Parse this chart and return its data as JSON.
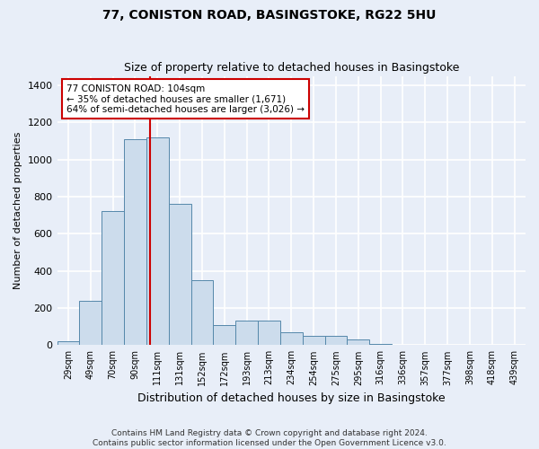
{
  "title1": "77, CONISTON ROAD, BASINGSTOKE, RG22 5HU",
  "title2": "Size of property relative to detached houses in Basingstoke",
  "xlabel": "Distribution of detached houses by size in Basingstoke",
  "ylabel": "Number of detached properties",
  "footnote": "Contains HM Land Registry data © Crown copyright and database right 2024.\nContains public sector information licensed under the Open Government Licence v3.0.",
  "bar_labels": [
    "29sqm",
    "49sqm",
    "70sqm",
    "90sqm",
    "111sqm",
    "131sqm",
    "152sqm",
    "172sqm",
    "193sqm",
    "213sqm",
    "234sqm",
    "254sqm",
    "275sqm",
    "295sqm",
    "316sqm",
    "336sqm",
    "357sqm",
    "377sqm",
    "398sqm",
    "418sqm",
    "439sqm"
  ],
  "bar_values": [
    20,
    240,
    720,
    1110,
    1120,
    760,
    350,
    110,
    130,
    130,
    70,
    50,
    50,
    30,
    5,
    0,
    0,
    0,
    0,
    0,
    0
  ],
  "bar_color": "#ccdcec",
  "bar_edge_color": "#5588aa",
  "vline_x_index": 3.67,
  "annotation_text": "77 CONISTON ROAD: 104sqm\n← 35% of detached houses are smaller (1,671)\n64% of semi-detached houses are larger (3,026) →",
  "annotation_box_facecolor": "#ffffff",
  "annotation_box_edgecolor": "#cc0000",
  "vline_color": "#cc0000",
  "ylim": [
    0,
    1450
  ],
  "yticks": [
    0,
    200,
    400,
    600,
    800,
    1000,
    1200,
    1400
  ],
  "background_color": "#e8eef8",
  "grid_color": "#ffffff",
  "title1_fontsize": 10,
  "title2_fontsize": 9,
  "ylabel_fontsize": 8,
  "xlabel_fontsize": 9,
  "tick_fontsize": 7,
  "footnote_fontsize": 6.5
}
